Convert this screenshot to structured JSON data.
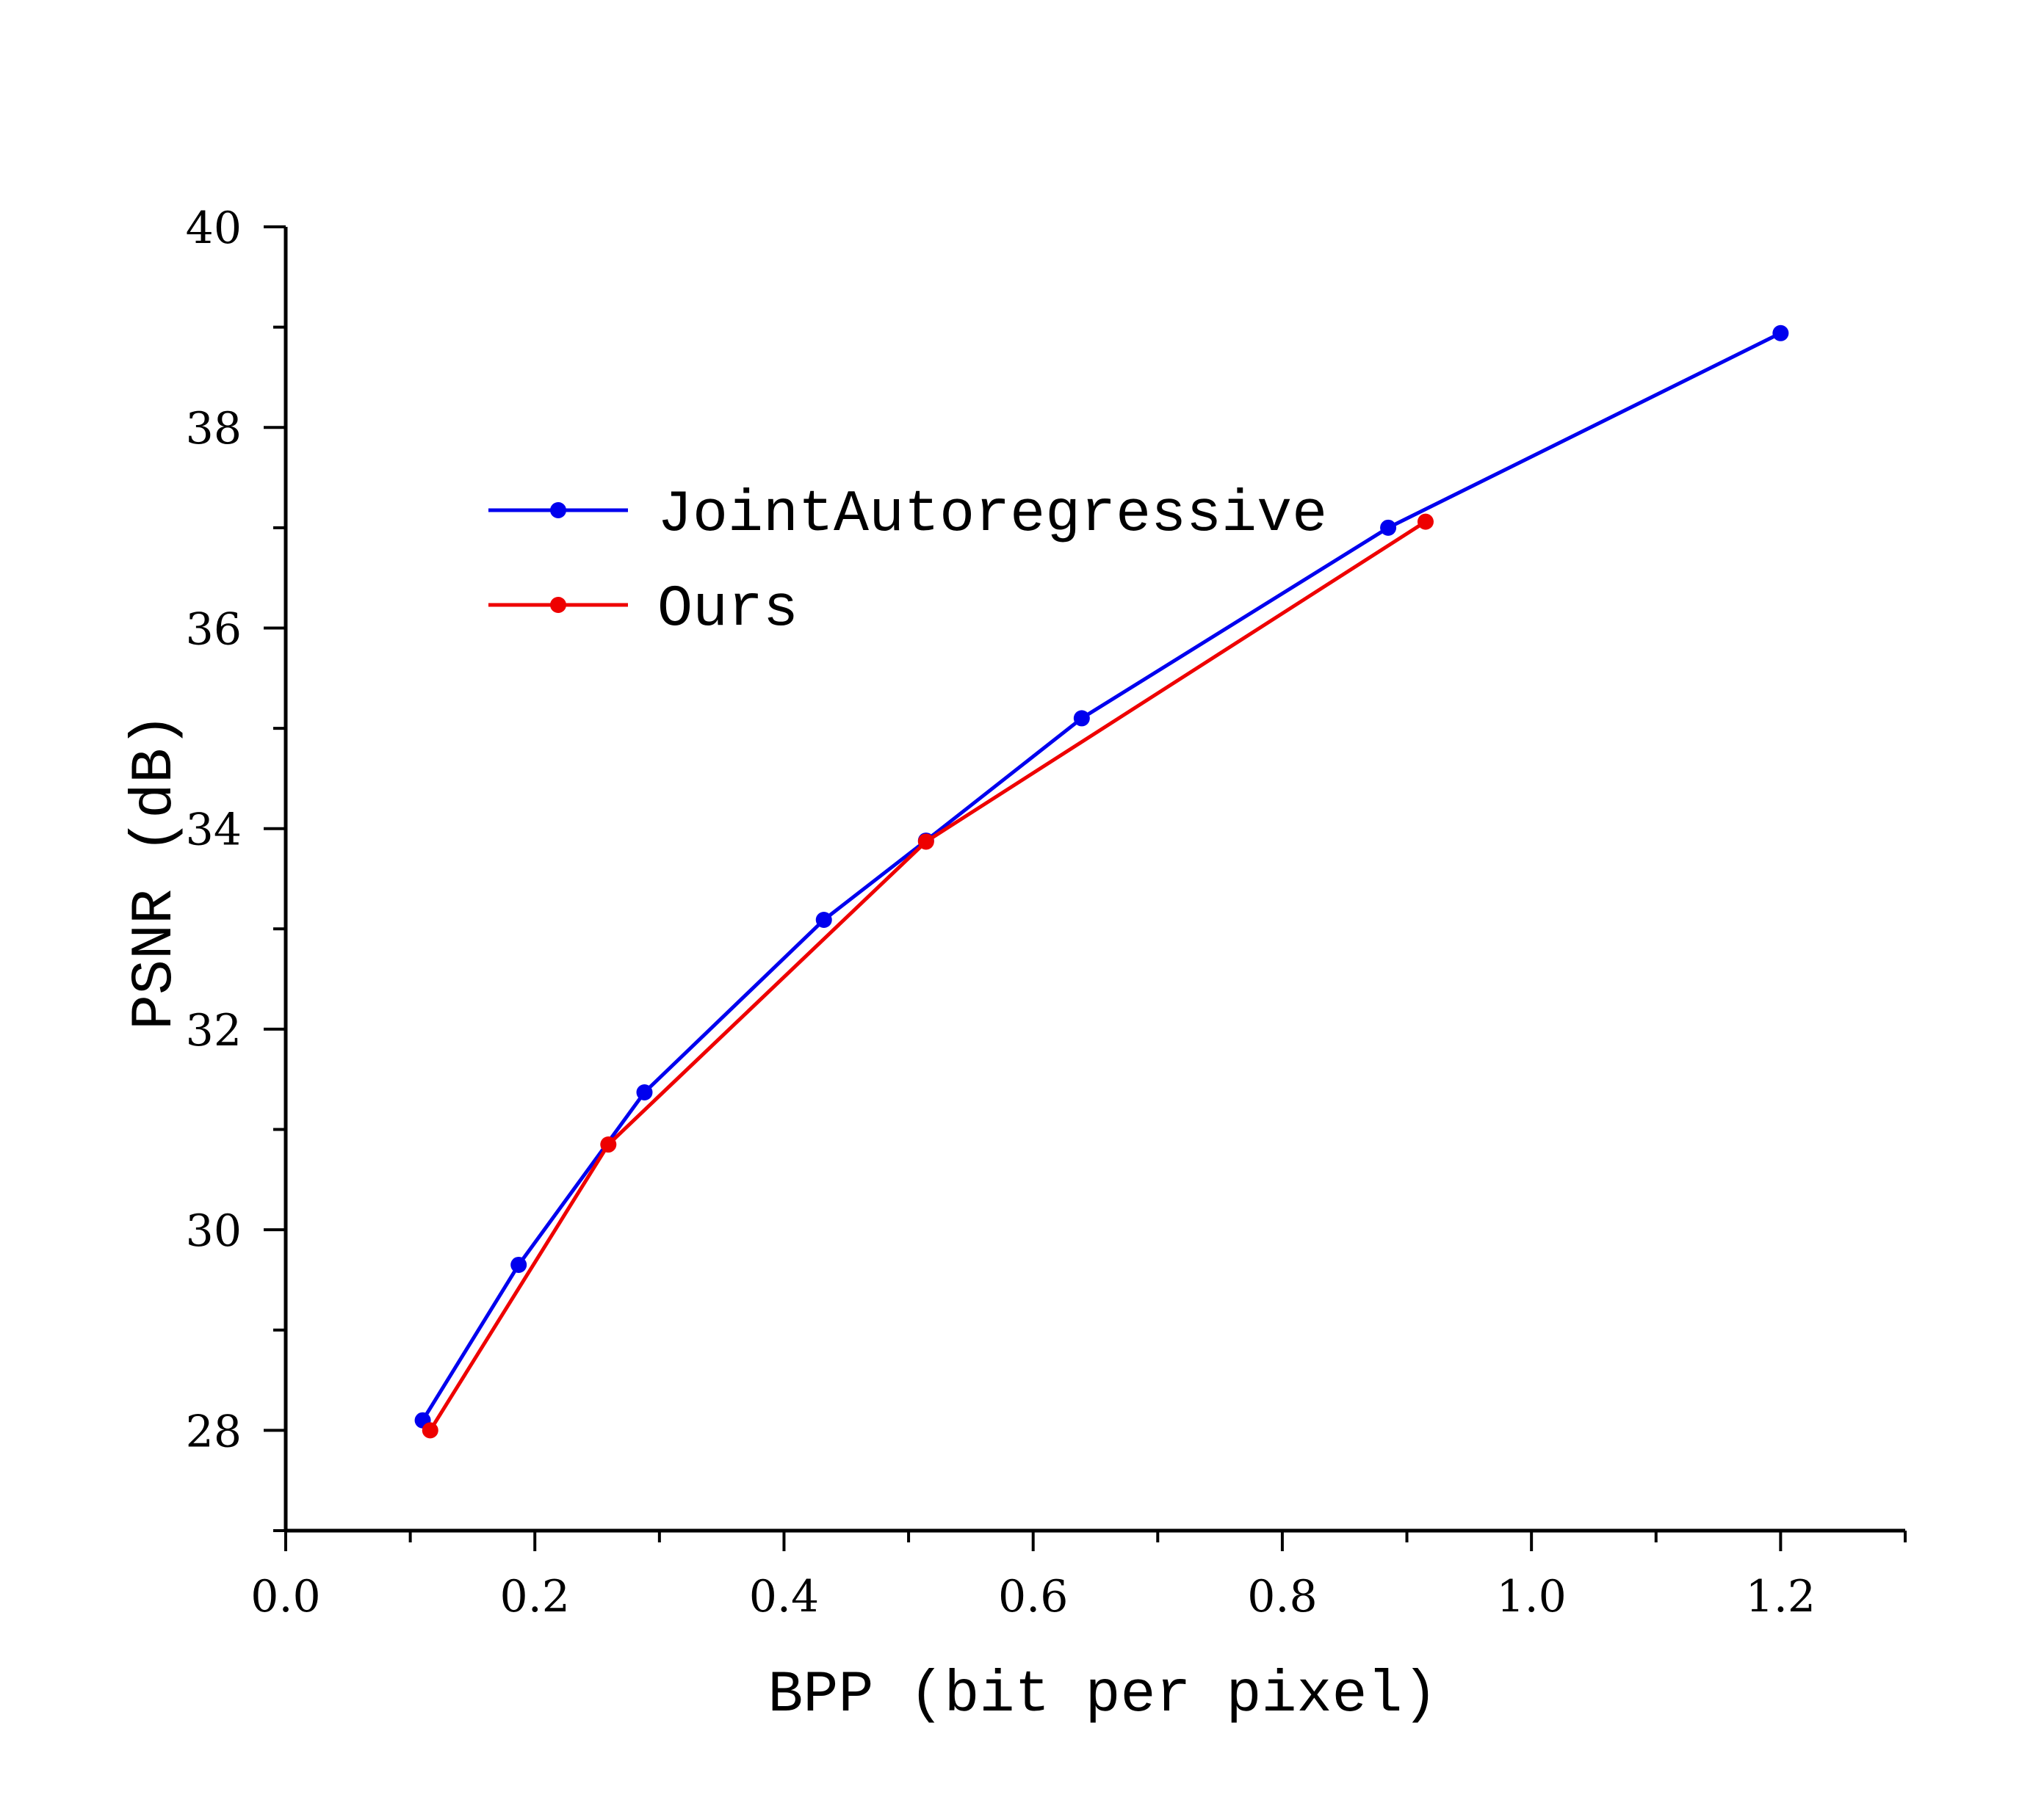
{
  "chart_data": {
    "type": "line",
    "xlabel": "BPP (bit per pixel)",
    "ylabel": "PSNR (dB)",
    "xlim": [
      0.0,
      1.3
    ],
    "ylim": [
      27.0,
      40.0
    ],
    "x_ticks": [
      "0.0",
      "0.2",
      "0.4",
      "0.6",
      "0.8",
      "1.0",
      "1.2"
    ],
    "y_ticks": [
      "28",
      "30",
      "32",
      "34",
      "36",
      "38",
      "40"
    ],
    "grid": false,
    "legend_position": "upper-left",
    "series": [
      {
        "name": "JointAutoregressive",
        "color": "#0000ee",
        "x": [
          0.11,
          0.187,
          0.288,
          0.432,
          0.514,
          0.639,
          0.885,
          1.2
        ],
        "y": [
          28.1,
          29.65,
          31.37,
          33.09,
          33.88,
          35.1,
          37.0,
          38.94
        ]
      },
      {
        "name": "Ours",
        "color": "#ee0000",
        "x": [
          0.116,
          0.259,
          0.514,
          0.915
        ],
        "y": [
          28.0,
          30.85,
          33.87,
          37.06
        ]
      }
    ]
  }
}
